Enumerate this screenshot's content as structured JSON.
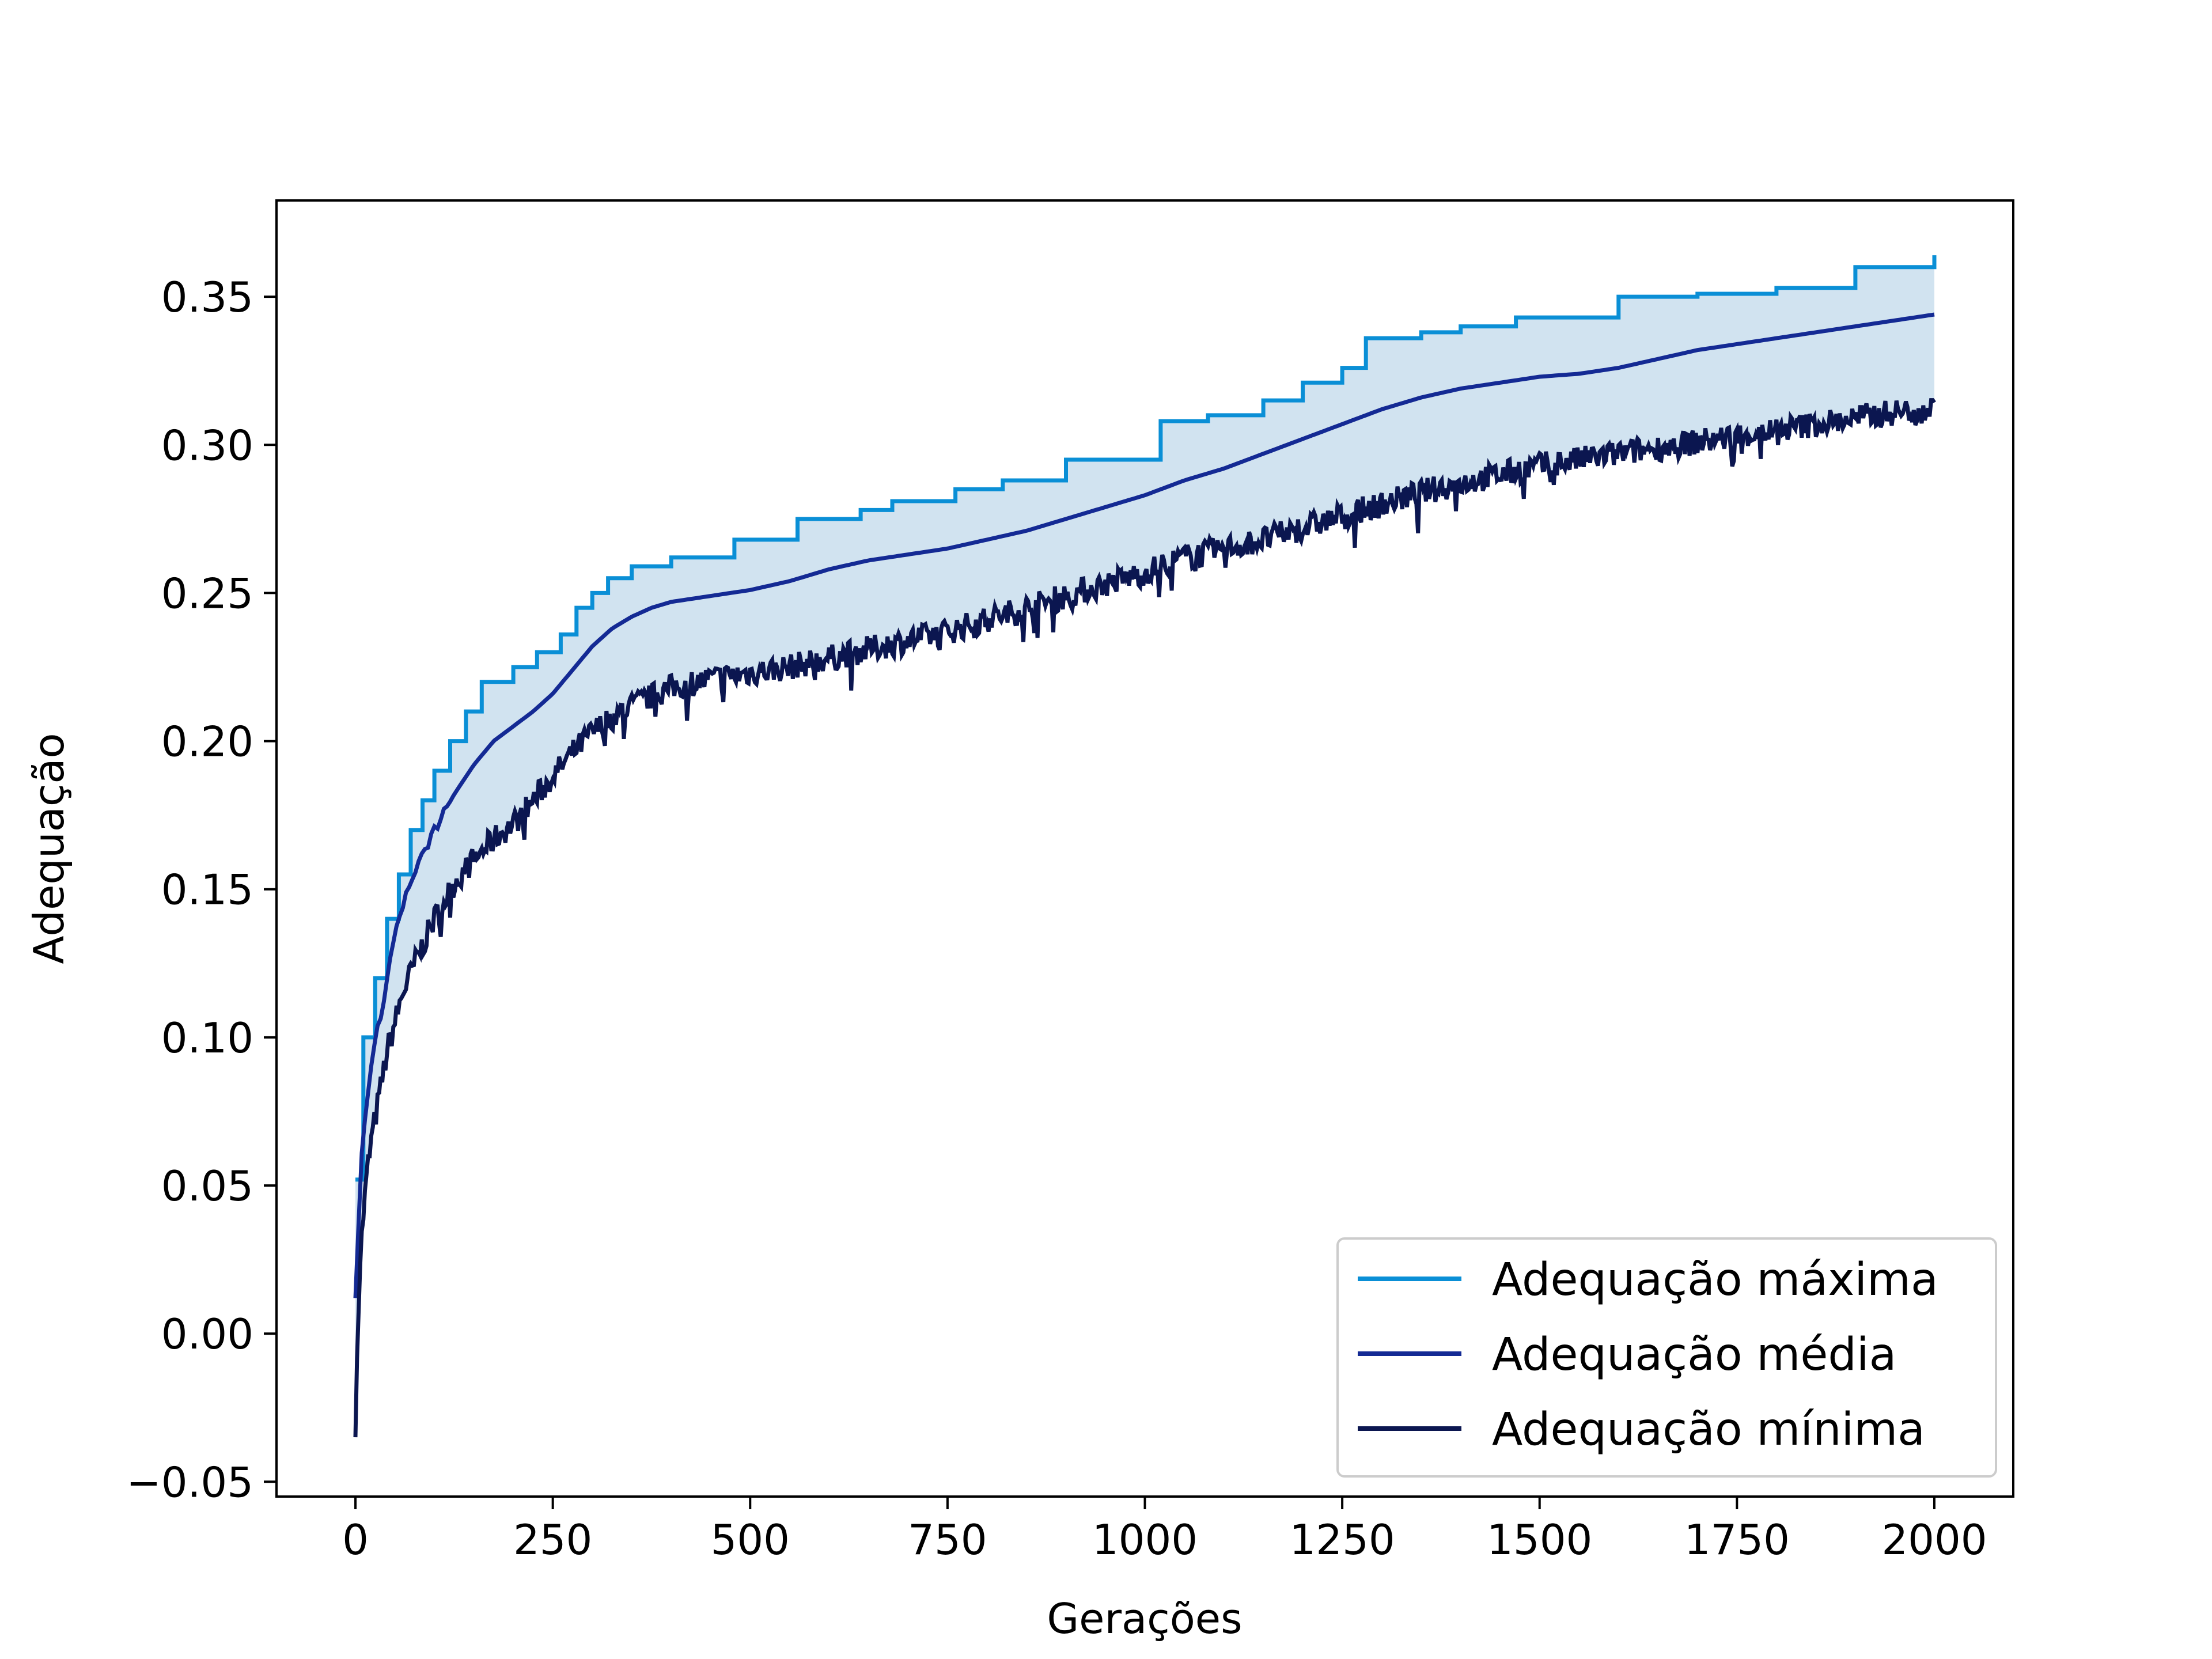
{
  "chart_data": {
    "type": "line",
    "title": "",
    "xlabel": "Gerações",
    "ylabel": "Adequação",
    "xlim": [
      -100,
      2100
    ],
    "ylim": [
      -0.055,
      0.3825
    ],
    "xticks": [
      0,
      250,
      500,
      750,
      1000,
      1250,
      1500,
      1750,
      2000
    ],
    "xtick_labels": [
      "0",
      "250",
      "500",
      "750",
      "1000",
      "1250",
      "1500",
      "1750",
      "2000"
    ],
    "yticks": [
      -0.05,
      0.0,
      0.05,
      0.1,
      0.15,
      0.2,
      0.25,
      0.3,
      0.35
    ],
    "ytick_labels": [
      "−0.05",
      "0.00",
      "0.05",
      "0.10",
      "0.15",
      "0.20",
      "0.25",
      "0.30",
      "0.35"
    ],
    "grid": false,
    "legend_position": "bottom-right",
    "fill_between": {
      "lower": "Adequação mínima",
      "upper": "Adequação máxima",
      "color": "#d1e3f0"
    },
    "series": [
      {
        "name": "Adequação máxima",
        "color": "#0a8fd6",
        "style": "step",
        "x": [
          0,
          10,
          25,
          40,
          55,
          70,
          85,
          100,
          120,
          140,
          160,
          200,
          230,
          260,
          280,
          300,
          320,
          350,
          400,
          480,
          560,
          640,
          680,
          760,
          820,
          900,
          1020,
          1080,
          1150,
          1200,
          1250,
          1280,
          1350,
          1400,
          1470,
          1600,
          1700,
          1800,
          1900,
          2000
        ],
        "y": [
          0.052,
          0.1,
          0.12,
          0.14,
          0.155,
          0.17,
          0.18,
          0.19,
          0.2,
          0.21,
          0.22,
          0.225,
          0.23,
          0.236,
          0.245,
          0.25,
          0.255,
          0.259,
          0.262,
          0.268,
          0.275,
          0.278,
          0.281,
          0.285,
          0.288,
          0.295,
          0.308,
          0.31,
          0.315,
          0.321,
          0.326,
          0.336,
          0.338,
          0.34,
          0.343,
          0.35,
          0.351,
          0.353,
          0.36,
          0.364
        ]
      },
      {
        "name": "Adequação média",
        "color": "#142a94",
        "style": "line",
        "x": [
          0,
          5,
          10,
          20,
          30,
          40,
          50,
          60,
          75,
          100,
          125,
          150,
          175,
          200,
          225,
          250,
          275,
          300,
          325,
          350,
          375,
          400,
          450,
          500,
          550,
          600,
          650,
          700,
          750,
          800,
          850,
          900,
          950,
          1000,
          1050,
          1100,
          1150,
          1200,
          1250,
          1300,
          1350,
          1400,
          1450,
          1500,
          1550,
          1600,
          1650,
          1700,
          1750,
          1800,
          1850,
          1900,
          1950,
          2000
        ],
        "y": [
          0.012,
          0.045,
          0.07,
          0.09,
          0.105,
          0.12,
          0.135,
          0.145,
          0.155,
          0.17,
          0.182,
          0.192,
          0.2,
          0.205,
          0.21,
          0.216,
          0.224,
          0.232,
          0.238,
          0.242,
          0.245,
          0.247,
          0.249,
          0.251,
          0.254,
          0.258,
          0.261,
          0.263,
          0.265,
          0.268,
          0.271,
          0.275,
          0.279,
          0.283,
          0.288,
          0.292,
          0.297,
          0.302,
          0.307,
          0.312,
          0.316,
          0.319,
          0.321,
          0.323,
          0.324,
          0.326,
          0.329,
          0.332,
          0.334,
          0.336,
          0.338,
          0.34,
          0.342,
          0.344
        ]
      },
      {
        "name": "Adequação mínima",
        "color": "#0b1650",
        "style": "noisy",
        "noise": 0.0045,
        "x": [
          0,
          3,
          6,
          10,
          15,
          20,
          30,
          40,
          50,
          60,
          75,
          100,
          125,
          150,
          175,
          200,
          225,
          250,
          275,
          300,
          325,
          350,
          375,
          400,
          450,
          500,
          550,
          600,
          650,
          700,
          750,
          800,
          850,
          900,
          950,
          1000,
          1050,
          1100,
          1150,
          1200,
          1250,
          1300,
          1350,
          1400,
          1450,
          1500,
          1550,
          1600,
          1650,
          1700,
          1750,
          1800,
          1850,
          1900,
          1950,
          2000
        ],
        "y": [
          -0.035,
          0.005,
          0.025,
          0.04,
          0.055,
          0.065,
          0.08,
          0.095,
          0.105,
          0.115,
          0.125,
          0.14,
          0.152,
          0.16,
          0.167,
          0.172,
          0.18,
          0.188,
          0.196,
          0.203,
          0.208,
          0.212,
          0.215,
          0.218,
          0.221,
          0.223,
          0.225,
          0.228,
          0.231,
          0.234,
          0.237,
          0.241,
          0.245,
          0.249,
          0.253,
          0.257,
          0.262,
          0.265,
          0.268,
          0.272,
          0.276,
          0.28,
          0.284,
          0.287,
          0.29,
          0.293,
          0.295,
          0.297,
          0.299,
          0.301,
          0.303,
          0.305,
          0.307,
          0.309,
          0.311,
          0.312
        ]
      }
    ]
  }
}
